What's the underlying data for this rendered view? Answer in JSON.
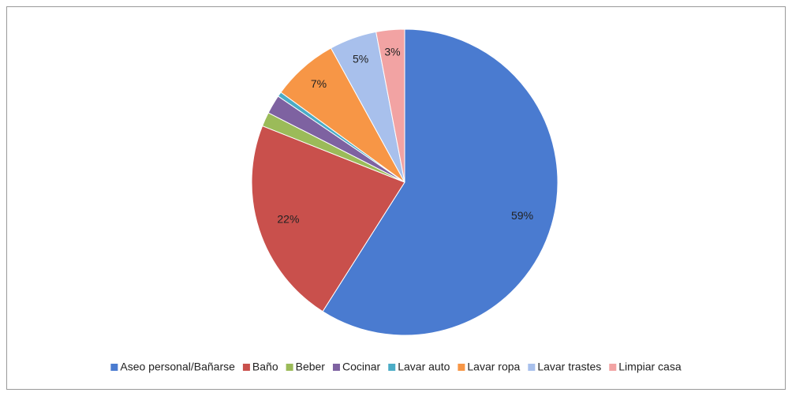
{
  "chart_data": {
    "type": "pie",
    "categories": [
      "Aseo personal/Bañarse",
      "Baño",
      "Beber",
      "Cocinar",
      "Lavar auto",
      "Lavar ropa",
      "Lavar trastes",
      "Limpiar casa"
    ],
    "values": [
      59,
      22,
      1.5,
      2,
      0.5,
      7,
      5,
      3
    ],
    "value_labels": [
      "59%",
      "22%",
      null,
      null,
      null,
      "7%",
      "5%",
      "3%"
    ],
    "colors": [
      "#4a7bd0",
      "#c9504c",
      "#9bbb59",
      "#7e62a1",
      "#4bacc6",
      "#f79646",
      "#a8c0ec",
      "#f2a3a3"
    ],
    "legend": "bottom"
  }
}
